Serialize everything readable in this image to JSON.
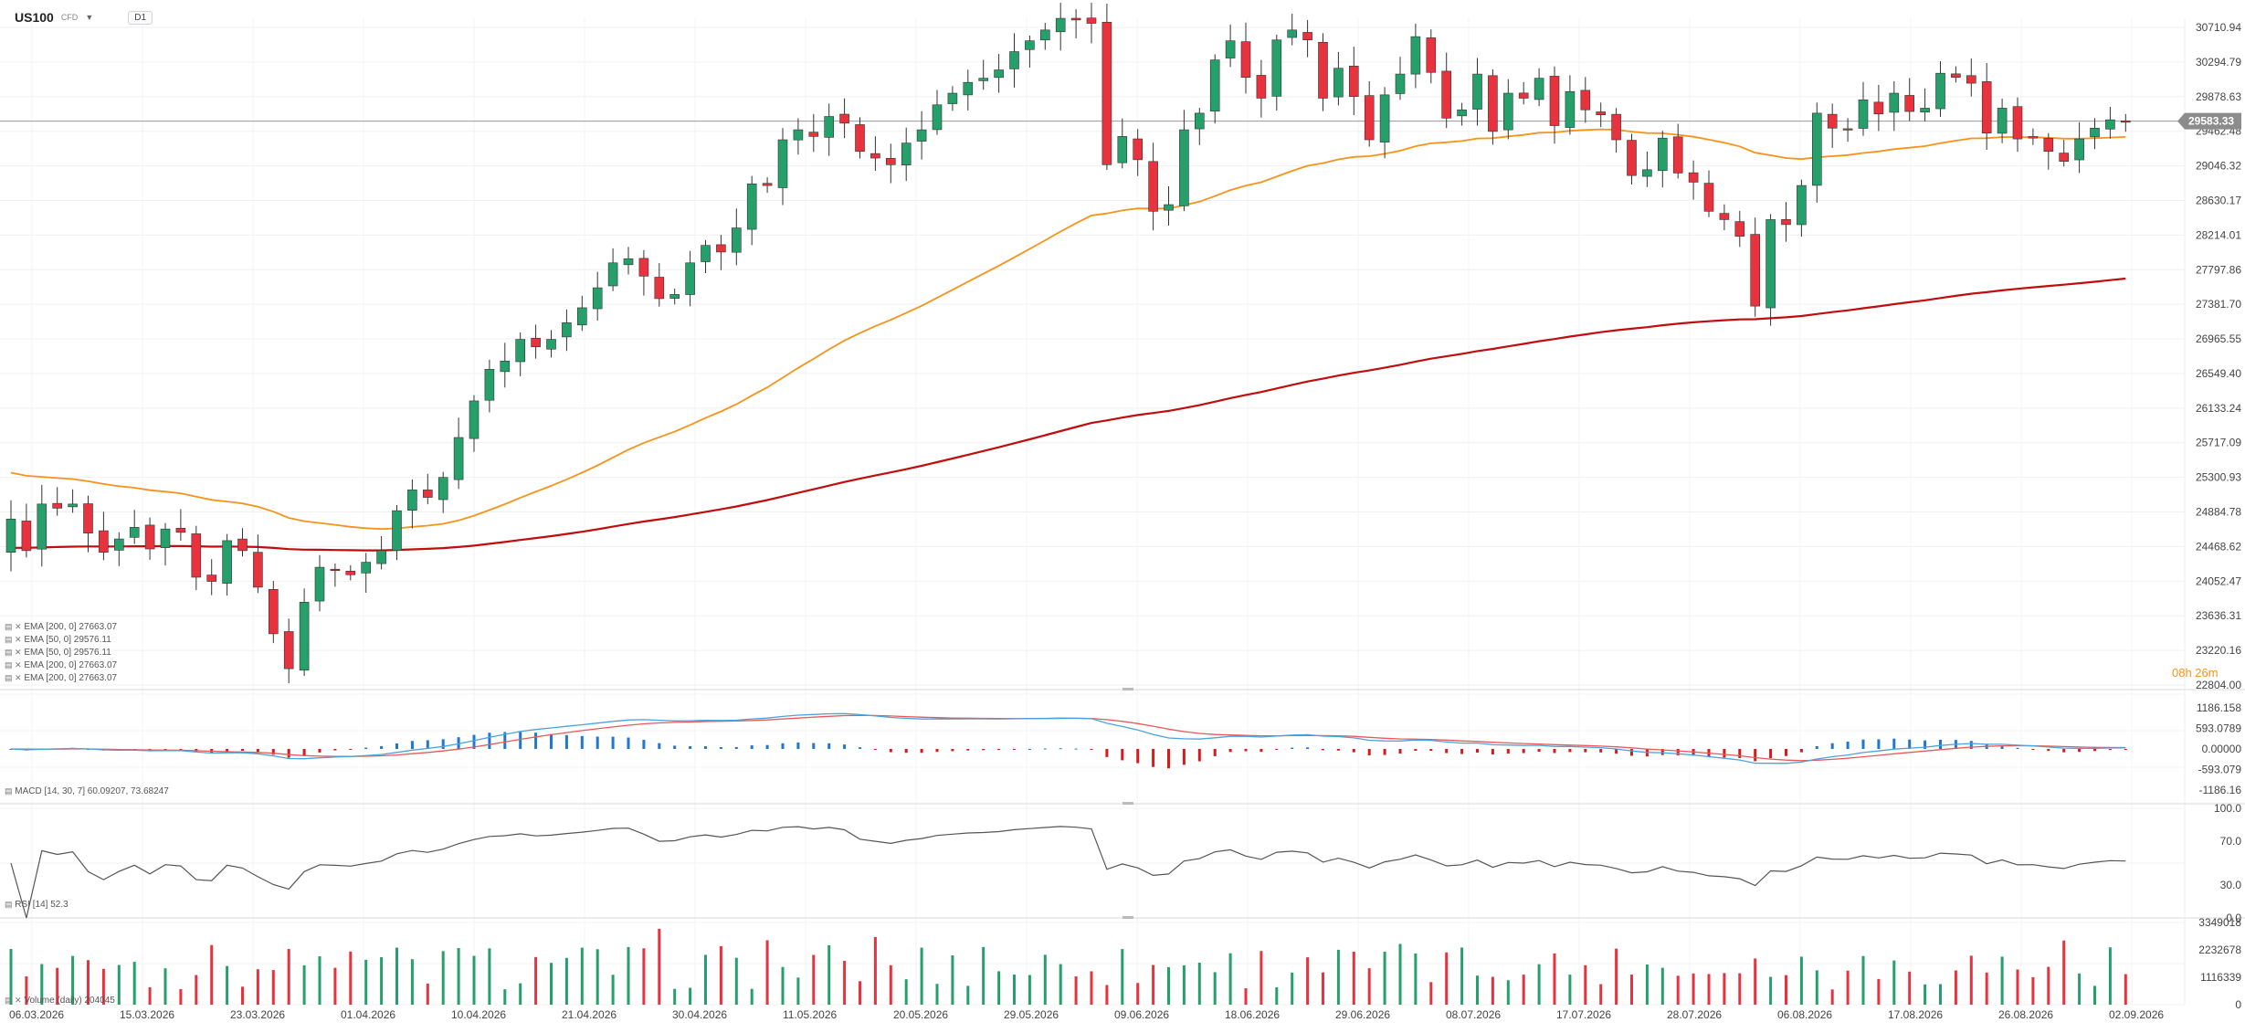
{
  "header": {
    "symbol": "US100",
    "sub": "CFD",
    "timeframe": "D1"
  },
  "timer": "08h 26m",
  "last_price": "29583.33",
  "colors": {
    "bull": "#26a06b",
    "bear": "#e8333f",
    "ema50": "#f7931a",
    "ema200": "#c00d0d",
    "macd_line": "#4aa3df",
    "signal_line": "#e85a5a",
    "rsi": "#555555",
    "vol_bull": "#26a06b",
    "vol_bear": "#e8333f",
    "pos": "#1f77d0",
    "neg": "#d61b1b",
    "label_bg": "#8c8c8c",
    "timer": "#f7931a"
  },
  "legends": {
    "ema": [
      "EMA [200, 0] 27663.07",
      "EMA [50, 0] 29576.11",
      "EMA [50, 0] 29576.11",
      "EMA [200, 0] 27663.07",
      "EMA [200, 0] 27663.07"
    ],
    "macd": "MACD [14, 30, 7] 60.09207, 73.68247",
    "rsi": "RSI [14] 52.3",
    "volume": "Volume (daily) 204045"
  },
  "chart_data": {
    "type": "candlestick",
    "price_axis": [
      "30710.94",
      "30294.79",
      "29878.63",
      "29462.48",
      "29046.32",
      "28630.17",
      "28214.01",
      "27797.86",
      "27381.70",
      "26965.55",
      "26549.40",
      "26133.24",
      "25717.09",
      "25300.93",
      "24884.78",
      "24468.62",
      "24052.47",
      "23636.31",
      "23220.16",
      "22804.00"
    ],
    "macd_axis": [
      "1186.158",
      "593.0789",
      "0.00000",
      "-593.079",
      "-1186.16"
    ],
    "rsi_axis": [
      "100.0",
      "70.0",
      "30.0",
      "0.0"
    ],
    "volume_axis": [
      "3349018",
      "2232678",
      "1116339",
      "0"
    ],
    "x_labels": [
      "06.03.2026",
      "15.03.2026",
      "23.03.2026",
      "01.04.2026",
      "10.04.2026",
      "21.04.2026",
      "30.04.2026",
      "11.05.2026",
      "20.05.2026",
      "29.05.2026",
      "09.06.2026",
      "18.06.2026",
      "29.06.2026",
      "08.07.2026",
      "17.07.2026",
      "28.07.2026",
      "06.08.2026",
      "17.08.2026",
      "26.08.2026",
      "02.09.2026"
    ],
    "closes": [
      24800,
      24420,
      24980,
      24930,
      24980,
      24630,
      24400,
      24560,
      24700,
      24440,
      24680,
      24640,
      24100,
      24050,
      24540,
      24420,
      23980,
      23420,
      23000,
      23800,
      24220,
      24180,
      24130,
      24280,
      24420,
      24900,
      25150,
      25060,
      25300,
      25780,
      26220,
      26600,
      26700,
      26960,
      26870,
      26960,
      27160,
      27340,
      27580,
      27880,
      27930,
      27720,
      27450,
      27500,
      27880,
      28090,
      28010,
      28300,
      28830,
      28810,
      29360,
      29480,
      29400,
      29640,
      29560,
      29220,
      29140,
      29060,
      29320,
      29480,
      29780,
      29920,
      30050,
      30100,
      30200,
      30420,
      30550,
      30680,
      30820,
      30800,
      30760,
      29060,
      29400,
      29120,
      28500,
      28580,
      29480,
      29680,
      30320,
      30550,
      30110,
      29860,
      30560,
      30680,
      30560,
      29860,
      30220,
      29880,
      29360,
      29900,
      30150,
      30600,
      30170,
      29620,
      29720,
      30150,
      29460,
      29920,
      29860,
      30100,
      29530,
      29940,
      29720,
      29660,
      29360,
      28930,
      29000,
      29380,
      28960,
      28850,
      28500,
      28400,
      28200,
      27360,
      28400,
      28340,
      28810,
      29680,
      29500,
      29480,
      29840,
      29670,
      29920,
      29700,
      29740,
      30160,
      30110,
      30040,
      29440,
      29740,
      29370,
      29380,
      29220,
      29100,
      29370,
      29500,
      29600,
      29580
    ]
  }
}
